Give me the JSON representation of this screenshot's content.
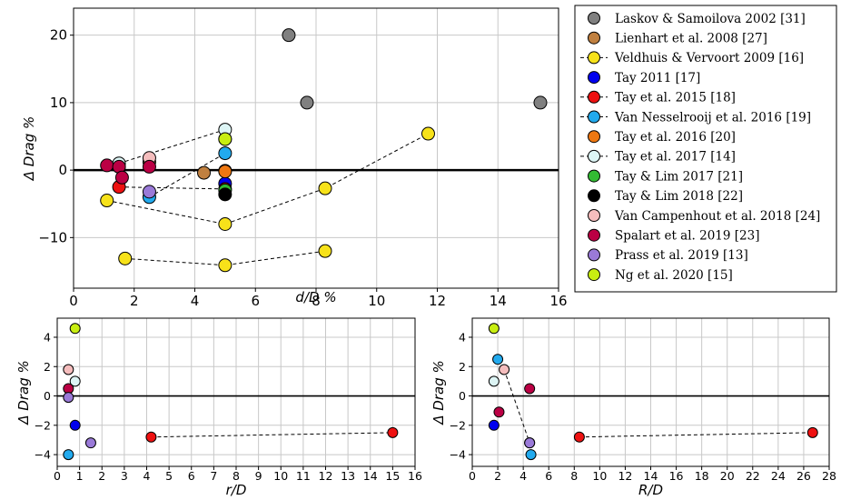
{
  "chart_data": [
    {
      "type": "scatter",
      "id": "main",
      "xlabel": "d/D  %",
      "ylabel": "Δ Drag  %",
      "xlim": [
        0,
        16
      ],
      "ylim": [
        -17.5,
        24
      ],
      "xticks": [
        0,
        2,
        4,
        6,
        8,
        10,
        12,
        14,
        16
      ],
      "yticks": [
        -10,
        0,
        10,
        20
      ],
      "grid": true,
      "zero_line": true,
      "legend": {
        "placement": "right",
        "entries": [
          0,
          1,
          2,
          3,
          4,
          5,
          6,
          7,
          8,
          9,
          10,
          11,
          12,
          13
        ]
      },
      "series": [
        {
          "name": "Laskov & Samoilova 2002 [31]",
          "color": "#808080",
          "line": false,
          "points": [
            [
              7.1,
              20
            ],
            [
              7.7,
              10
            ],
            [
              15.4,
              10
            ]
          ]
        },
        {
          "name": "Lienhart et al. 2008 [27]",
          "color": "#c08040",
          "line": false,
          "points": [
            [
              1.5,
              0.5
            ],
            [
              2.5,
              1.2
            ],
            [
              4.3,
              -0.4
            ],
            [
              5.0,
              -0.1
            ]
          ]
        },
        {
          "name": "Veldhuis & Vervoort 2009 [16]",
          "color": "#f7e21a",
          "line": true,
          "lines": [
            [
              [
                1.1,
                -4.5
              ],
              [
                5.0,
                -8.0
              ],
              [
                8.3,
                -2.7
              ],
              [
                11.7,
                5.4
              ]
            ],
            [
              [
                1.7,
                -13.1
              ],
              [
                5.0,
                -14.1
              ],
              [
                8.3,
                -12.0
              ]
            ]
          ],
          "points": [
            [
              5.0,
              4.6
            ]
          ]
        },
        {
          "name": "Tay 2011 [17]",
          "color": "#0000ee",
          "line": false,
          "points": [
            [
              5.0,
              -2.0
            ]
          ]
        },
        {
          "name": "Tay et al. 2015 [18]",
          "color": "#ee1111",
          "line": true,
          "lines": [
            [
              [
                1.5,
                -2.5
              ],
              [
                5.0,
                -2.8
              ]
            ]
          ],
          "points": []
        },
        {
          "name": "Van Nesselrooij et al. 2016 [19]",
          "color": "#22aaee",
          "line": true,
          "lines": [
            [
              [
                2.5,
                -4.0
              ],
              [
                5.0,
                2.5
              ]
            ]
          ],
          "points": []
        },
        {
          "name": "Tay et al. 2016 [20]",
          "color": "#ee7711",
          "line": false,
          "points": [
            [
              5.0,
              -0.2
            ]
          ]
        },
        {
          "name": "Tay et al. 2017 [14]",
          "color": "#ddf5f5",
          "line": true,
          "lines": [
            [
              [
                1.5,
                1.0
              ],
              [
                5.0,
                6.0
              ]
            ]
          ],
          "points": []
        },
        {
          "name": "Tay & Lim 2017 [21]",
          "color": "#33bb33",
          "line": false,
          "points": [
            [
              5.0,
              -3.0
            ]
          ]
        },
        {
          "name": "Tay & Lim 2018 [22]",
          "color": "#000000",
          "line": false,
          "points": [
            [
              5.0,
              -3.6
            ]
          ]
        },
        {
          "name": "Van Campenhout et al. 2018 [24]",
          "color": "#f5bdbd",
          "line": false,
          "points": [
            [
              2.5,
              1.8
            ]
          ]
        },
        {
          "name": "Spalart et al. 2019 [23]",
          "color": "#bb0044",
          "line": false,
          "points": [
            [
              1.1,
              0.7
            ],
            [
              1.5,
              0.5
            ],
            [
              1.6,
              -1.1
            ],
            [
              2.5,
              0.5
            ]
          ]
        },
        {
          "name": "Prass et al. 2019 [13]",
          "color": "#9a7ad8",
          "line": false,
          "points": [
            [
              2.5,
              -3.2
            ]
          ]
        },
        {
          "name": "Ng et al. 2020 [15]",
          "color": "#c8ee11",
          "line": false,
          "points": [
            [
              5.0,
              4.6
            ]
          ]
        }
      ]
    },
    {
      "type": "scatter",
      "id": "r",
      "xlabel": "r/D",
      "ylabel": "Δ Drag  %",
      "xlim": [
        0,
        16
      ],
      "ylim": [
        -4.8,
        5.3
      ],
      "xticks": [
        0,
        1,
        2,
        3,
        4,
        5,
        6,
        7,
        8,
        9,
        10,
        11,
        12,
        13,
        14,
        15,
        16
      ],
      "yticks": [
        -4,
        -2,
        0,
        2,
        4
      ],
      "grid": true,
      "zero_line": true,
      "series": [
        {
          "ref": 13,
          "points": [
            [
              0.8,
              4.6
            ]
          ]
        },
        {
          "ref": 10,
          "points": [
            [
              0.5,
              1.8
            ]
          ]
        },
        {
          "ref": 7,
          "points": [
            [
              0.8,
              1.0
            ]
          ]
        },
        {
          "ref": 11,
          "points": [
            [
              0.5,
              0.5
            ]
          ]
        },
        {
          "ref": 12,
          "points": [
            [
              0.5,
              -0.1
            ],
            [
              1.5,
              -3.2
            ]
          ]
        },
        {
          "ref": 3,
          "points": [
            [
              0.8,
              -2.0
            ]
          ]
        },
        {
          "ref": 5,
          "points": [
            [
              0.5,
              -4.0
            ]
          ]
        },
        {
          "ref": 4,
          "lines": [
            [
              [
                4.2,
                -2.8
              ],
              [
                15.0,
                -2.5
              ]
            ]
          ],
          "points": []
        }
      ]
    },
    {
      "type": "scatter",
      "id": "R",
      "xlabel": "R/D",
      "ylabel": "Δ Drag  %",
      "xlim": [
        0,
        28
      ],
      "ylim": [
        -4.8,
        5.3
      ],
      "xticks": [
        0,
        2,
        4,
        6,
        8,
        10,
        12,
        14,
        16,
        18,
        20,
        22,
        24,
        26,
        28
      ],
      "yticks": [
        -4,
        -2,
        0,
        2,
        4
      ],
      "grid": true,
      "zero_line": true,
      "series": [
        {
          "ref": 13,
          "points": [
            [
              1.7,
              4.6
            ]
          ]
        },
        {
          "ref": 5,
          "points": [
            [
              2.0,
              2.5
            ],
            [
              4.6,
              -4.0
            ]
          ]
        },
        {
          "ref": 7,
          "points": [
            [
              1.7,
              1.0
            ]
          ]
        },
        {
          "ref": 10,
          "lines": [
            [
              [
                2.5,
                1.8
              ],
              [
                4.5,
                -3.2
              ]
            ]
          ],
          "points": []
        },
        {
          "ref": 11,
          "points": [
            [
              4.5,
              0.5
            ],
            [
              2.1,
              -1.1
            ]
          ]
        },
        {
          "ref": 3,
          "points": [
            [
              1.7,
              -2.0
            ]
          ]
        },
        {
          "ref": 12,
          "points": [
            [
              4.5,
              -3.2
            ]
          ]
        },
        {
          "ref": 4,
          "lines": [
            [
              [
                8.4,
                -2.8
              ],
              [
                26.7,
                -2.5
              ]
            ]
          ],
          "points": []
        }
      ]
    }
  ]
}
